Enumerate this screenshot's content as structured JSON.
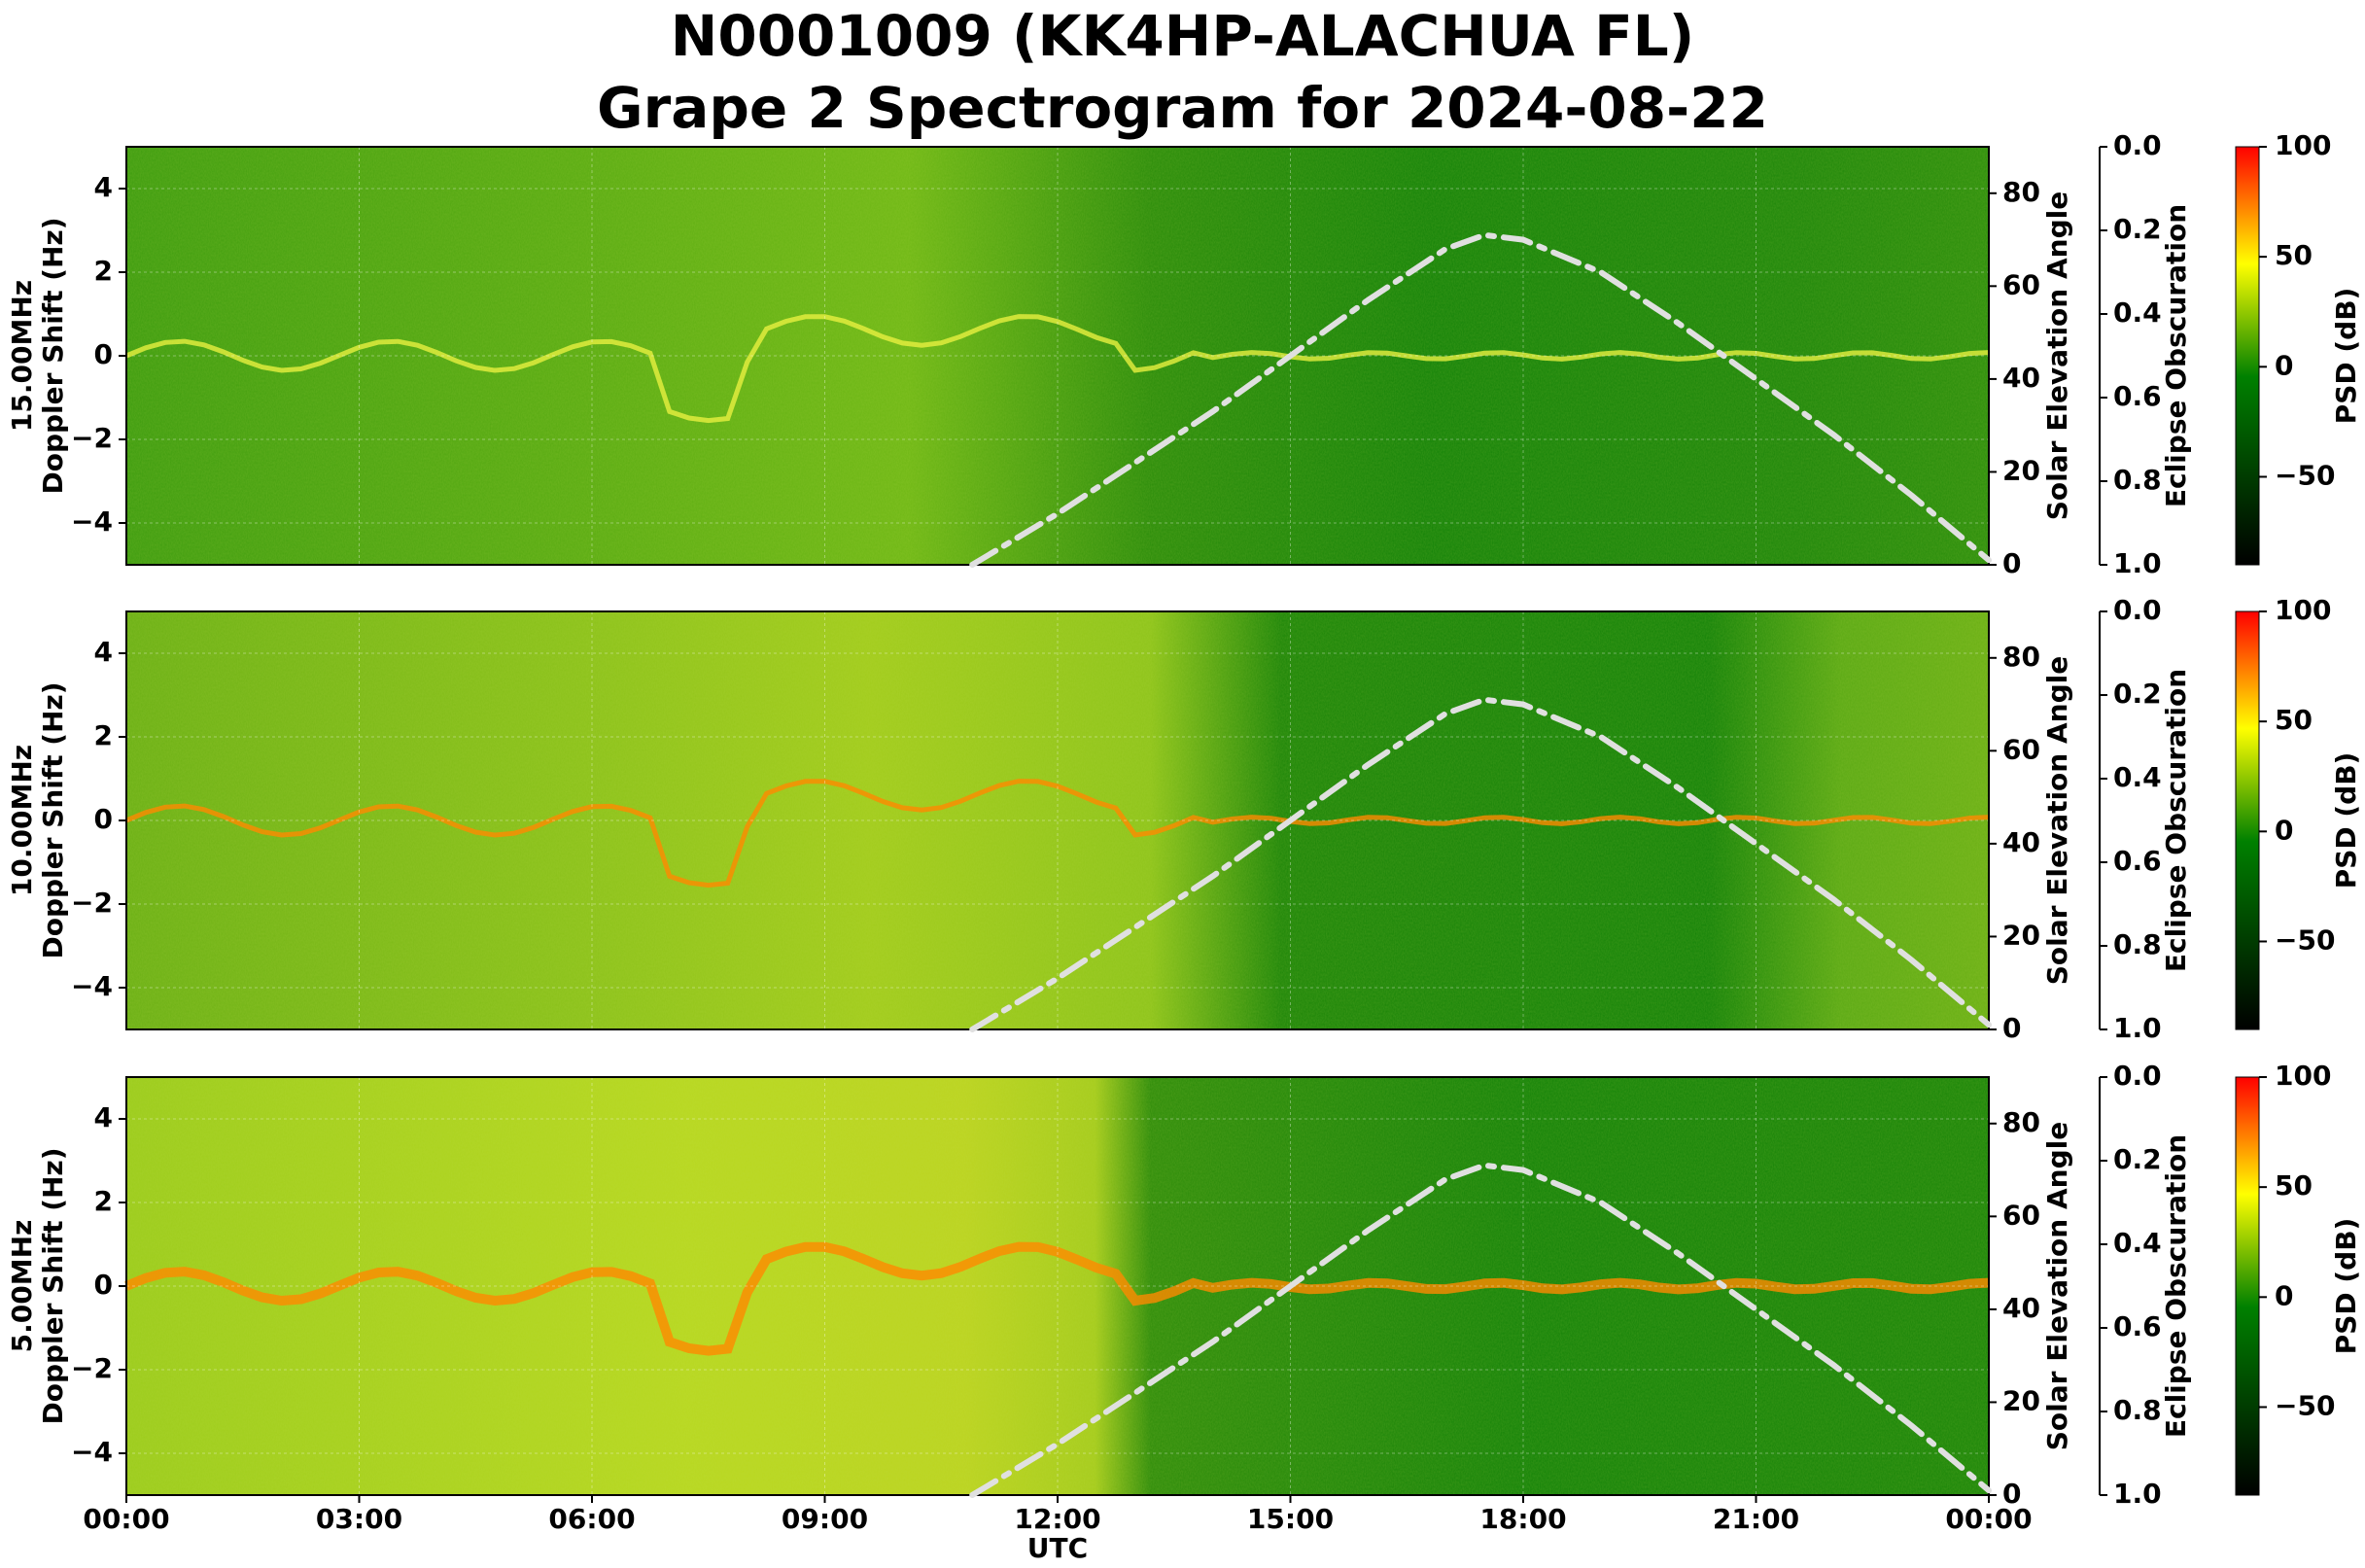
{
  "title_line1": "N0001009 (KK4HP-ALACHUA FL)",
  "title_line2": "Grape 2 Spectrogram for 2024-08-22",
  "xlabel": "UTC",
  "right_axis_label": "Solar Elevation Angle",
  "eclipse_label": "Eclipse Obscuration",
  "colorbar_label": "PSD (dB)",
  "colors": {
    "low": "#000000",
    "mid": "#008000",
    "high_mid": "#ffff00",
    "high": "#ff0000",
    "solar_curve": "#e0e0e0"
  },
  "chart_data": {
    "type": "heatmap",
    "x_ticks": [
      "00:00",
      "03:00",
      "06:00",
      "09:00",
      "12:00",
      "15:00",
      "18:00",
      "21:00",
      "00:00"
    ],
    "xlim_hours": [
      0,
      24
    ],
    "ylim": [
      -5,
      5
    ],
    "y_ticks": [
      4,
      2,
      0,
      -2,
      -4
    ],
    "elevation_ylim": [
      0,
      90
    ],
    "elevation_ticks": [
      80,
      60,
      40,
      20,
      0
    ],
    "eclipse_ylim": [
      0.0,
      1.0
    ],
    "eclipse_ticks": [
      "0.0",
      "0.2",
      "0.4",
      "0.6",
      "0.8",
      "1.0"
    ],
    "colorbar_range": [
      -90,
      100
    ],
    "colorbar_ticks": [
      100,
      50,
      0,
      -50
    ],
    "grid": true,
    "panels": [
      {
        "ylabel_line1": "15.00MHz",
        "ylabel_line2": "Doppler Shift (Hz)"
      },
      {
        "ylabel_line1": "10.00MHz",
        "ylabel_line2": "Doppler Shift (Hz)"
      },
      {
        "ylabel_line1": "5.00MHz",
        "ylabel_line2": "Doppler Shift (Hz)"
      }
    ],
    "solar_elevation": {
      "x_hours": [
        10.9,
        12,
        13,
        14,
        15,
        16,
        17,
        17.5,
        18,
        19,
        20,
        21,
        22,
        23,
        24
      ],
      "y_degrees": [
        0,
        11,
        22,
        33,
        45,
        57,
        68,
        71,
        70,
        63,
        52,
        40,
        28,
        15,
        1
      ]
    }
  }
}
